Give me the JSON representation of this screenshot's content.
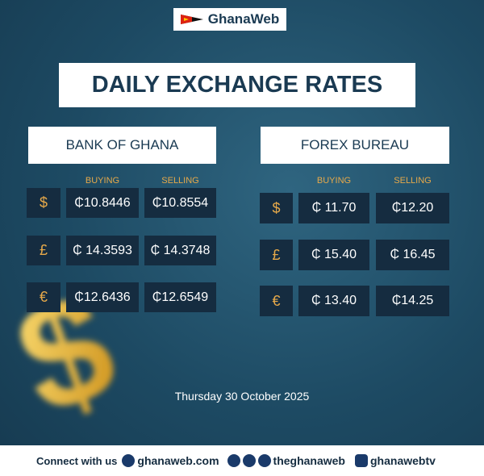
{
  "logo": "GhanaWeb",
  "title": "DAILY EXCHANGE RATES",
  "sections": [
    {
      "name": "BANK OF GHANA",
      "columns": [
        "BUYING",
        "SELLING"
      ],
      "rows": [
        {
          "symbol": "$",
          "buying": "₵10.8446",
          "selling": "₵10.8554"
        },
        {
          "symbol": "£",
          "buying": "₵ 14.3593",
          "selling": "₵ 14.3748"
        },
        {
          "symbol": "€",
          "buying": "₵12.6436",
          "selling": "₵12.6549"
        }
      ]
    },
    {
      "name": "FOREX BUREAU",
      "columns": [
        "BUYING",
        "SELLING"
      ],
      "rows": [
        {
          "symbol": "$",
          "buying": "₵ 11.70",
          "selling": "₵12.20"
        },
        {
          "symbol": "£",
          "buying": "₵ 15.40",
          "selling": "₵ 16.45"
        },
        {
          "symbol": "€",
          "buying": "₵ 13.40",
          "selling": "₵14.25"
        }
      ]
    }
  ],
  "date": "Thursday 30 October 2025",
  "footer": {
    "label": "Connect with us",
    "website": "ghanaweb.com",
    "social": "theghanaweb",
    "youtube": "ghanawebtv"
  }
}
